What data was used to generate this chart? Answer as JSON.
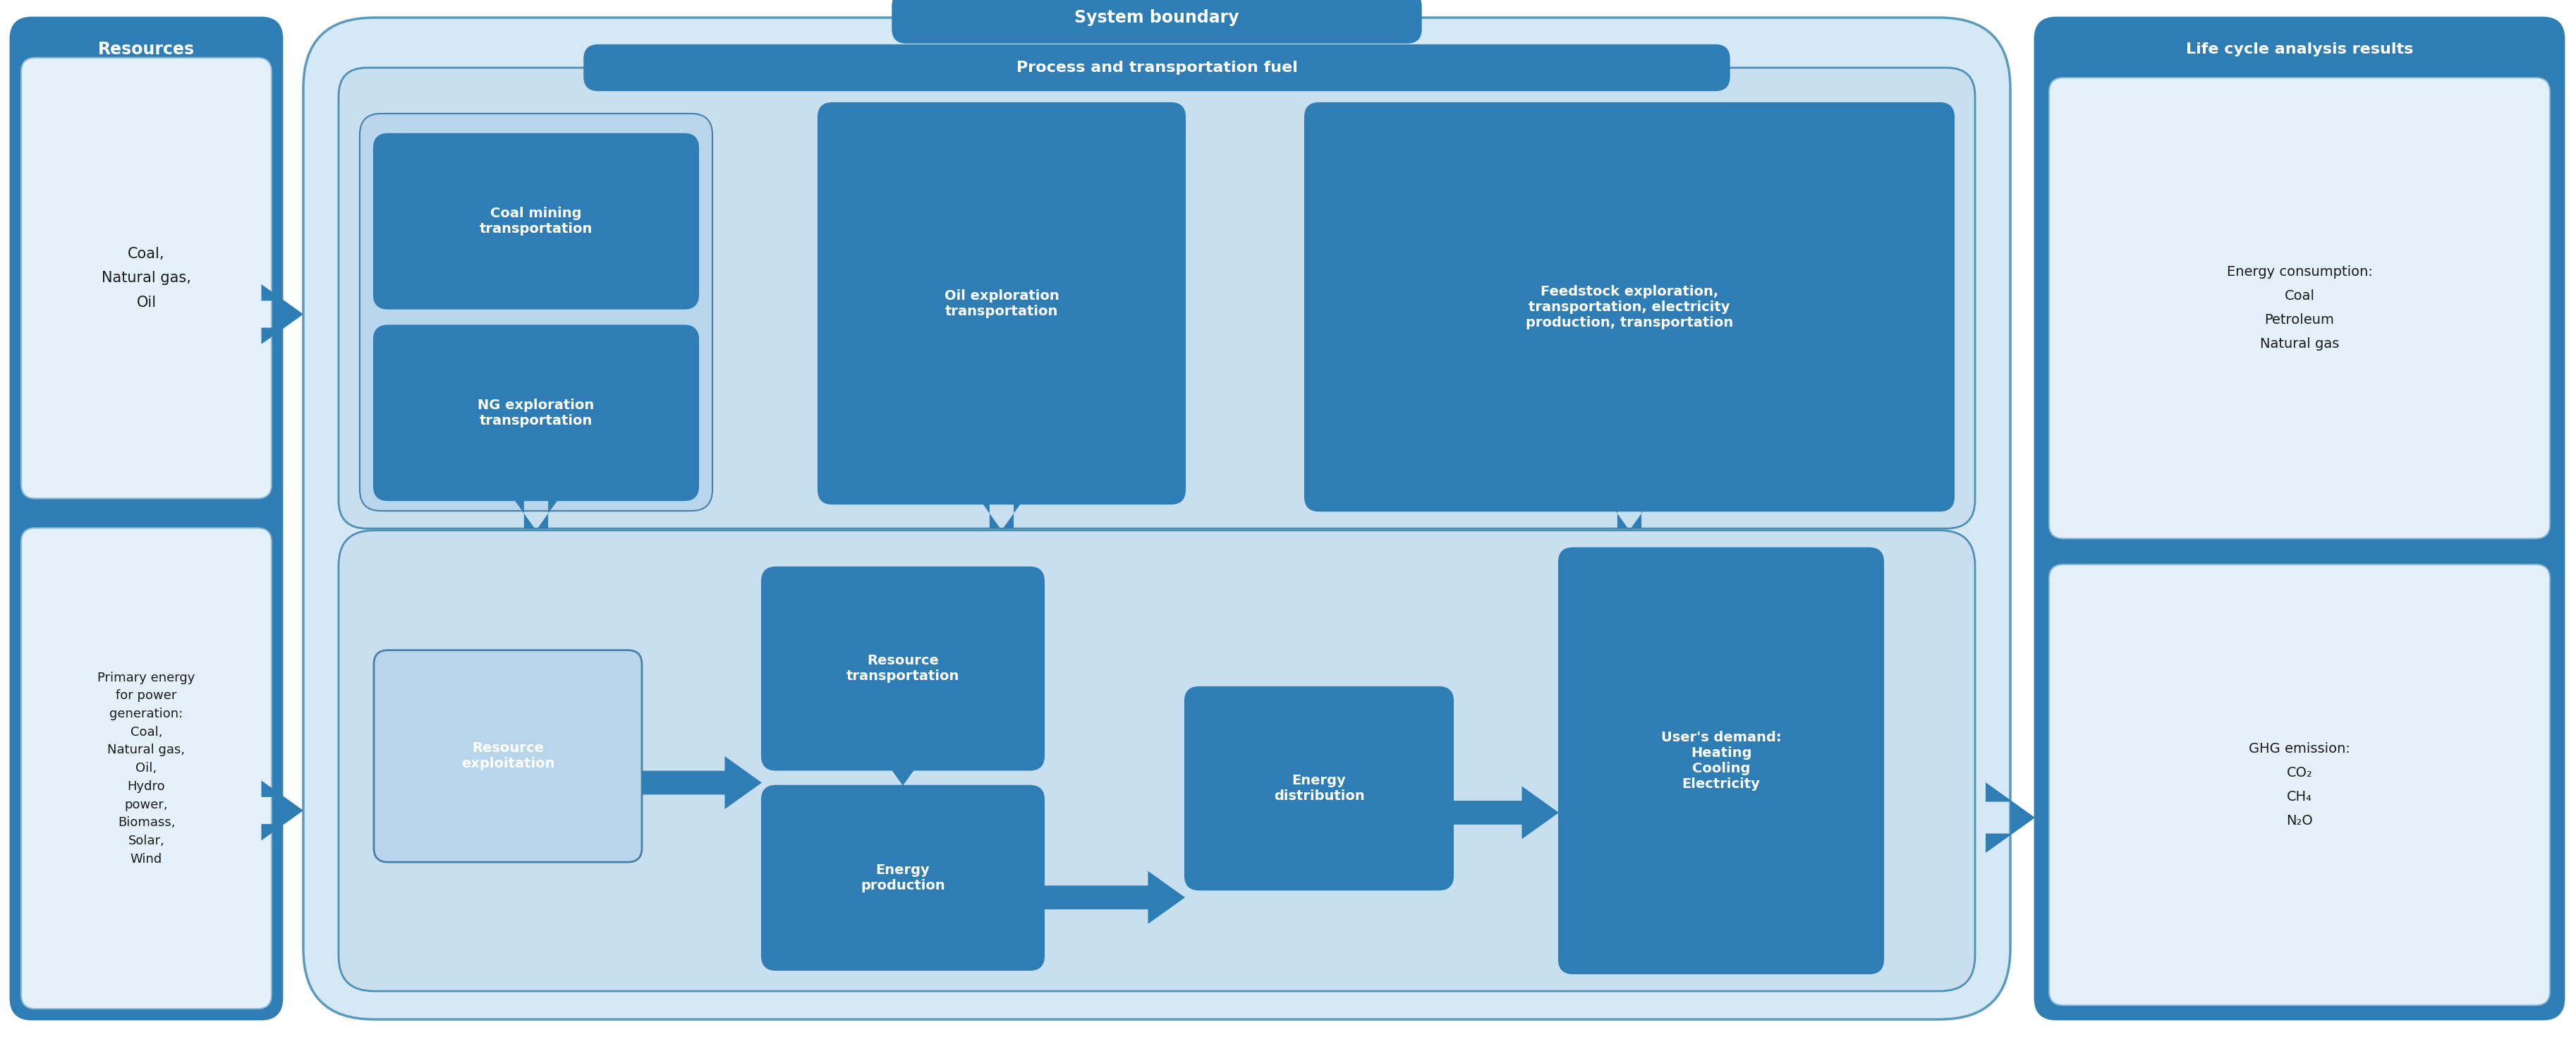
{
  "fig_width": 36.52,
  "fig_height": 14.7,
  "bg_color": "#ffffff",
  "dark_blue": "#2e7db5",
  "light_blue_bg": "#d4e8f5",
  "inner_blue_bg": "#c8dff0",
  "box_bg_light": "#ddeef8",
  "white_text": "#ffffff",
  "black_text": "#1a1a1a",
  "title_resources": "Resources",
  "title_lifecycle": "Life cycle analysis results",
  "title_system": "System boundary",
  "title_process": "Process and transportation fuel",
  "box1_text": "Coal,\nNatural gas,\nOil",
  "box2_text": "Primary energy\nfor power\ngeneration:\nCoal,\nNatural gas,\nOil,\nHydro\npower,\nBiomass,\nSolar,\nWind",
  "coal_mining_text": "Coal mining\ntransportation",
  "ng_exploration_text": "NG exploration\ntransportation",
  "oil_exploration_text": "Oil exploration\ntransportation",
  "feedstock_text": "Feedstock exploration,\ntransportation, electricity\nproduction, transportation",
  "resource_exploit_text": "Resource\nexploitation",
  "resource_transport_text": "Resource\ntransportation",
  "energy_production_text": "Energy\nproduction",
  "energy_distribution_text": "Energy\ndistribution",
  "users_demand_text": "User's demand:\nHeating\nCooling\nElectricity",
  "energy_consumption_text": "Energy consumption:\nCoal\nPetroleum\nNatural gas",
  "ghg_emission_text": "GHG emission:\nCO₂\nCH₄\nN₂O"
}
